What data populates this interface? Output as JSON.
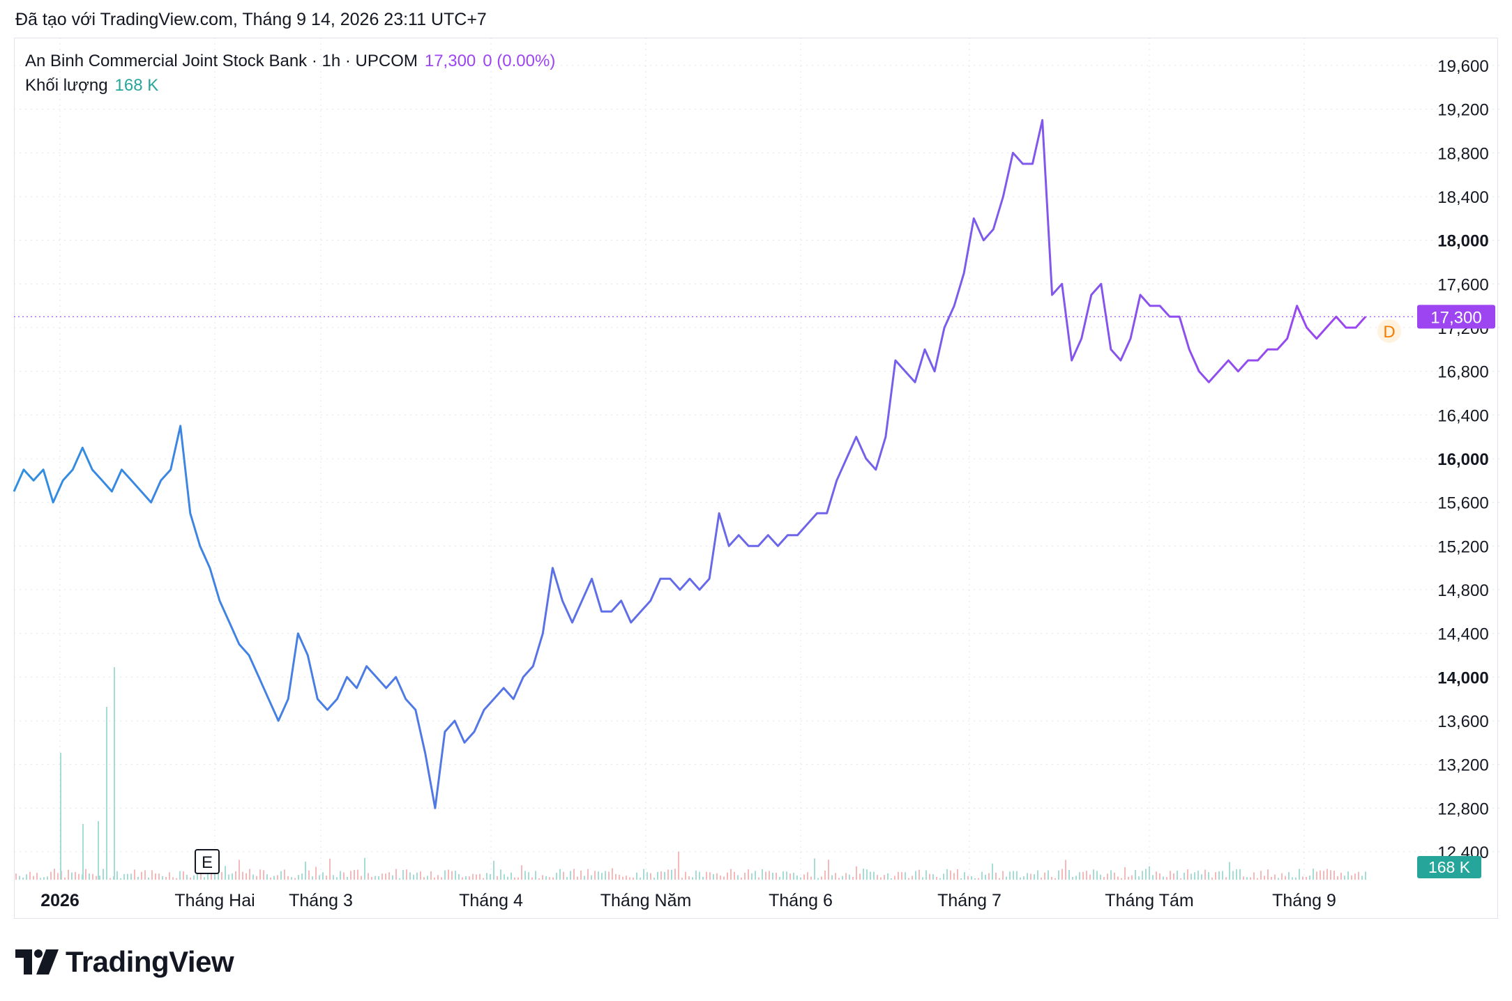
{
  "caption": "Đã tạo với TradingView.com, Tháng 9 14, 2026 23:11 UTC+7",
  "legend": {
    "symbol": "An Binh Commercial Joint Stock Bank · 1h · UPCOM",
    "price": "17,300",
    "change": "0 (0.00%)",
    "volume_label": "Khối lượng",
    "volume_value": "168 K"
  },
  "brand": "TradingView",
  "colors": {
    "line_start": "#2f8fe0",
    "line_end": "#9c45f0",
    "price_badge": "#9c45f0",
    "volume_badge": "#26a69a",
    "dividend_marker": "#f57c00",
    "grid": "#e0e3eb"
  },
  "markers": {
    "earnings": "E",
    "dividend": "D"
  },
  "chart_data": {
    "type": "line",
    "title": "An Binh Commercial Joint Stock Bank · 1h · UPCOM",
    "y_ticks": [
      "19,600",
      "19,200",
      "18,800",
      "18,400",
      "18,000",
      "17,600",
      "17,200",
      "16,800",
      "16,400",
      "16,000",
      "15,600",
      "15,200",
      "14,800",
      "14,400",
      "14,000",
      "13,600",
      "13,200",
      "12,800",
      "12,400"
    ],
    "y_ticks_bold": [
      "18,000",
      "16,000",
      "14,000"
    ],
    "ylim": [
      12400,
      19600
    ],
    "x_labels": [
      "2026",
      "Tháng Hai",
      "Tháng 3",
      "Tháng 4",
      "Tháng Năm",
      "Tháng 6",
      "Tháng 7",
      "Tháng Tám",
      "Tháng 9"
    ],
    "last_price": 17300,
    "last_price_label": "17,300",
    "volume_label": "168 K",
    "series": [
      {
        "values": [
          15700,
          15900,
          15800,
          15900,
          15600,
          15800,
          15900,
          16100,
          15900,
          15800,
          15700,
          15900,
          15800,
          15700,
          15600,
          15800,
          15900,
          16300,
          15500,
          15200,
          15000,
          14700,
          14500,
          14300,
          14200,
          14000,
          13800,
          13600,
          13800,
          14400,
          14200,
          13800,
          13700,
          13800,
          14000,
          13900,
          14100,
          14000,
          13900,
          14000,
          13800,
          13700,
          13300,
          12800,
          13500,
          13600,
          13400,
          13500,
          13700,
          13800,
          13900,
          13800,
          14000,
          14100,
          14400,
          15000,
          14700,
          14500,
          14700,
          14900,
          14600,
          14600,
          14700,
          14500,
          14600,
          14700,
          14900,
          14900,
          14800,
          14900,
          14800,
          14900,
          15500,
          15200,
          15300,
          15200,
          15200,
          15300,
          15200,
          15300,
          15300,
          15400,
          15500,
          15500,
          15800,
          16000,
          16200,
          16000,
          15900,
          16200,
          16900,
          16800,
          16700,
          17000,
          16800,
          17200,
          17400,
          17700,
          18200,
          18000,
          18100,
          18400,
          18800,
          18700,
          18700,
          19100,
          17500,
          17600,
          16900,
          17100,
          17500,
          17600,
          17000,
          16900,
          17100,
          17500,
          17400,
          17400,
          17300,
          17300,
          17000,
          16800,
          16700,
          16800,
          16900,
          16800,
          16900,
          16900,
          17000,
          17000,
          17100,
          17400,
          17200,
          17100,
          17200,
          17300,
          17200,
          17200,
          17300
        ]
      }
    ]
  }
}
